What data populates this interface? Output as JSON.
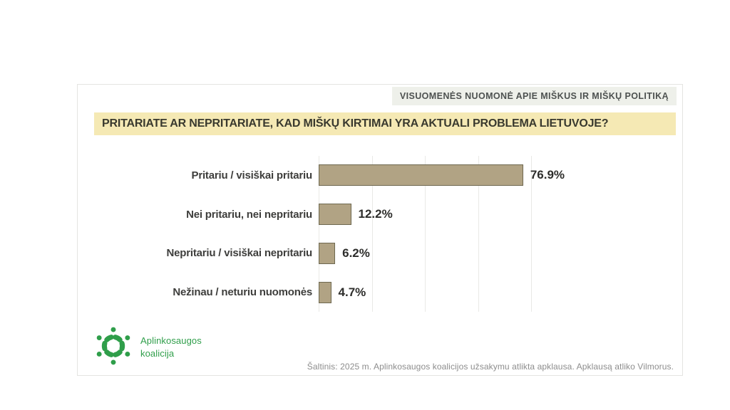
{
  "header": {
    "kicker": "VISUOMENĖS NUOMONĖ APIE MIŠKUS IR MIŠKŲ POLITIKĄ",
    "title": "PRITARIATE AR NEPRITARIATE, KAD MIŠKŲ KIRTIMAI YRA AKTUALI PROBLEMA LIETUVOJE?"
  },
  "chart_data": {
    "type": "bar",
    "orientation": "horizontal",
    "title": "PRITARIATE AR NEPRITARIATE, KAD MIŠKŲ KIRTIMAI YRA AKTUALI PROBLEMA LIETUVOJE?",
    "categories": [
      "Pritariu / visiškai pritariu",
      "Nei pritariu, nei nepritariu",
      "Nepritariu / visiškai nepritariu",
      "Nežinau / neturiu nuomonės"
    ],
    "values": [
      76.9,
      12.2,
      6.2,
      4.7
    ],
    "value_labels": [
      "76.9%",
      "12.2%",
      "6.2%",
      "4.7%"
    ],
    "unit": "%",
    "xlim": [
      0,
      85
    ],
    "gridline_percents": [
      0,
      20,
      40,
      60,
      80
    ],
    "grid": true,
    "legend": false
  },
  "footer": {
    "logo_line1": "Aplinkosaugos",
    "logo_line2": "koalicija",
    "source": "Šaltinis: 2025 m. Aplinkosaugos koalicijos užsakymu atlikta apklausa. Apklausą atliko Vilmorus."
  },
  "colors": {
    "bar_fill": "#b1a384",
    "bar_border": "#6e6850",
    "gridline": "#e9e9e6",
    "title_bg": "#f5e9b4",
    "kicker_bg": "#eef0ea",
    "logo_green": "#2f9e4a",
    "source_text": "#8d8d8d"
  }
}
